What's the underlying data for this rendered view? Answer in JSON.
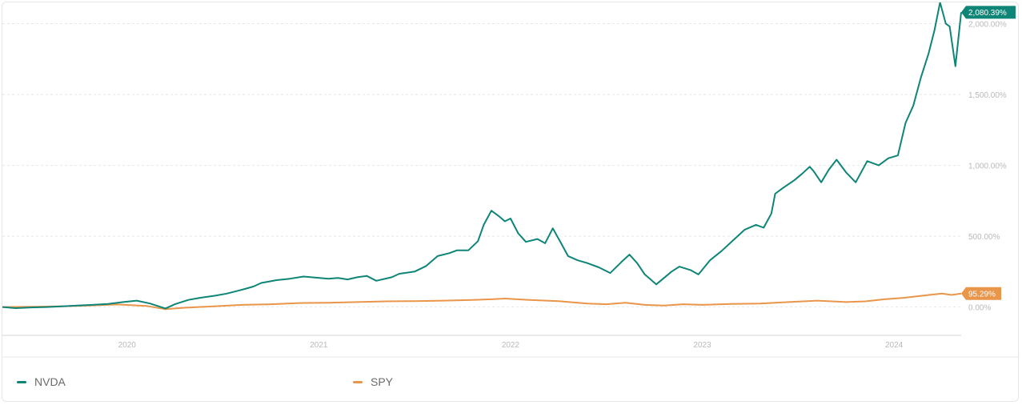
{
  "chart_data": {
    "type": "line",
    "title": "",
    "xlabel": "",
    "ylabel": "",
    "x_range": [
      2019.35,
      2024.35
    ],
    "ylim": [
      -200,
      2150
    ],
    "y_ticks": [
      0,
      500,
      1000,
      1500,
      2000
    ],
    "y_tick_labels": [
      "0.00%",
      "500.00%",
      "1,000.00%",
      "1,500.00%",
      "2,000.00%"
    ],
    "x_ticks": [
      2020,
      2021,
      2022,
      2023,
      2024
    ],
    "x_tick_labels": [
      "2020",
      "2021",
      "2022",
      "2023",
      "2024"
    ],
    "grid": "horizontal dashed",
    "legend_position": "bottom",
    "series": [
      {
        "name": "NVDA",
        "color": "#0e8577",
        "last_label": "2,080.39%",
        "points": [
          [
            2019.35,
            0
          ],
          [
            2019.42,
            -8
          ],
          [
            2019.5,
            -3
          ],
          [
            2019.58,
            0
          ],
          [
            2019.66,
            5
          ],
          [
            2019.74,
            10
          ],
          [
            2019.82,
            15
          ],
          [
            2019.9,
            22
          ],
          [
            2019.98,
            35
          ],
          [
            2020.05,
            45
          ],
          [
            2020.12,
            25
          ],
          [
            2020.2,
            -10
          ],
          [
            2020.25,
            20
          ],
          [
            2020.32,
            50
          ],
          [
            2020.38,
            65
          ],
          [
            2020.46,
            80
          ],
          [
            2020.52,
            95
          ],
          [
            2020.58,
            115
          ],
          [
            2020.62,
            130
          ],
          [
            2020.66,
            145
          ],
          [
            2020.7,
            170
          ],
          [
            2020.78,
            190
          ],
          [
            2020.85,
            200
          ],
          [
            2020.92,
            215
          ],
          [
            2020.98,
            208
          ],
          [
            2021.05,
            200
          ],
          [
            2021.1,
            205
          ],
          [
            2021.15,
            195
          ],
          [
            2021.2,
            210
          ],
          [
            2021.25,
            220
          ],
          [
            2021.3,
            185
          ],
          [
            2021.38,
            210
          ],
          [
            2021.42,
            235
          ],
          [
            2021.5,
            250
          ],
          [
            2021.56,
            290
          ],
          [
            2021.62,
            360
          ],
          [
            2021.68,
            380
          ],
          [
            2021.72,
            400
          ],
          [
            2021.78,
            400
          ],
          [
            2021.83,
            465
          ],
          [
            2021.86,
            580
          ],
          [
            2021.9,
            680
          ],
          [
            2021.94,
            640
          ],
          [
            2021.97,
            605
          ],
          [
            2022.0,
            625
          ],
          [
            2022.04,
            520
          ],
          [
            2022.08,
            460
          ],
          [
            2022.14,
            480
          ],
          [
            2022.18,
            450
          ],
          [
            2022.22,
            555
          ],
          [
            2022.26,
            460
          ],
          [
            2022.3,
            360
          ],
          [
            2022.35,
            330
          ],
          [
            2022.4,
            310
          ],
          [
            2022.46,
            280
          ],
          [
            2022.52,
            240
          ],
          [
            2022.58,
            320
          ],
          [
            2022.62,
            370
          ],
          [
            2022.66,
            310
          ],
          [
            2022.7,
            230
          ],
          [
            2022.76,
            160
          ],
          [
            2022.8,
            205
          ],
          [
            2022.84,
            250
          ],
          [
            2022.88,
            285
          ],
          [
            2022.94,
            260
          ],
          [
            2022.98,
            230
          ],
          [
            2023.04,
            330
          ],
          [
            2023.1,
            395
          ],
          [
            2023.16,
            470
          ],
          [
            2023.22,
            545
          ],
          [
            2023.28,
            580
          ],
          [
            2023.32,
            560
          ],
          [
            2023.36,
            660
          ],
          [
            2023.38,
            800
          ],
          [
            2023.42,
            840
          ],
          [
            2023.48,
            895
          ],
          [
            2023.52,
            940
          ],
          [
            2023.56,
            990
          ],
          [
            2023.58,
            960
          ],
          [
            2023.62,
            880
          ],
          [
            2023.66,
            970
          ],
          [
            2023.7,
            1040
          ],
          [
            2023.75,
            950
          ],
          [
            2023.8,
            880
          ],
          [
            2023.86,
            1030
          ],
          [
            2023.92,
            1000
          ],
          [
            2023.97,
            1050
          ],
          [
            2024.02,
            1070
          ],
          [
            2024.06,
            1300
          ],
          [
            2024.1,
            1420
          ],
          [
            2024.14,
            1620
          ],
          [
            2024.18,
            1790
          ],
          [
            2024.21,
            1950
          ],
          [
            2024.24,
            2150
          ],
          [
            2024.27,
            2000
          ],
          [
            2024.29,
            1980
          ],
          [
            2024.32,
            1700
          ],
          [
            2024.35,
            2080
          ]
        ]
      },
      {
        "name": "SPY",
        "color": "#e9954a",
        "last_label": "95.29%",
        "points": [
          [
            2019.35,
            0
          ],
          [
            2019.5,
            2
          ],
          [
            2019.65,
            5
          ],
          [
            2019.8,
            10
          ],
          [
            2019.95,
            18
          ],
          [
            2020.1,
            8
          ],
          [
            2020.2,
            -15
          ],
          [
            2020.3,
            -5
          ],
          [
            2020.45,
            5
          ],
          [
            2020.6,
            15
          ],
          [
            2020.75,
            20
          ],
          [
            2020.9,
            28
          ],
          [
            2021.05,
            30
          ],
          [
            2021.2,
            35
          ],
          [
            2021.35,
            40
          ],
          [
            2021.5,
            42
          ],
          [
            2021.65,
            45
          ],
          [
            2021.8,
            50
          ],
          [
            2021.9,
            55
          ],
          [
            2021.97,
            60
          ],
          [
            2022.1,
            50
          ],
          [
            2022.25,
            42
          ],
          [
            2022.4,
            25
          ],
          [
            2022.5,
            20
          ],
          [
            2022.6,
            30
          ],
          [
            2022.7,
            15
          ],
          [
            2022.8,
            10
          ],
          [
            2022.9,
            20
          ],
          [
            2023.0,
            15
          ],
          [
            2023.15,
            22
          ],
          [
            2023.3,
            25
          ],
          [
            2023.45,
            35
          ],
          [
            2023.6,
            45
          ],
          [
            2023.75,
            35
          ],
          [
            2023.85,
            40
          ],
          [
            2023.95,
            55
          ],
          [
            2024.05,
            65
          ],
          [
            2024.15,
            80
          ],
          [
            2024.25,
            95
          ],
          [
            2024.3,
            85
          ],
          [
            2024.35,
            95
          ]
        ]
      }
    ]
  }
}
